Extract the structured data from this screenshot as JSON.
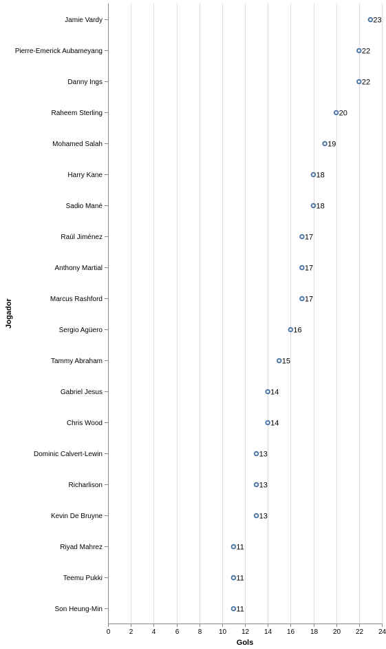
{
  "chart_data": {
    "type": "scatter",
    "title": "",
    "xlabel": "Gols",
    "ylabel": "Jogador",
    "xlim": [
      0,
      24
    ],
    "x_ticks": [
      0,
      2,
      4,
      6,
      8,
      10,
      12,
      14,
      16,
      18,
      20,
      22,
      24
    ],
    "grid": true,
    "point_color": "#4c78a8",
    "categories": [
      "Jamie Vardy",
      "Pierre-Emerick Aubameyang",
      "Danny Ings",
      "Raheem Sterling",
      "Mohamed Salah",
      "Harry Kane",
      "Sadio Mané",
      "Raúl Jiménez",
      "Anthony Martial",
      "Marcus Rashford",
      "Sergio Agüero",
      "Tammy Abraham",
      "Gabriel Jesus",
      "Chris Wood",
      "Dominic Calvert-Lewin",
      "Richarlison",
      "Kevin De Bruyne",
      "Riyad Mahrez",
      "Teemu Pukki",
      "Son Heung-Min"
    ],
    "values": [
      23,
      22,
      22,
      20,
      19,
      18,
      18,
      17,
      17,
      17,
      16,
      15,
      14,
      14,
      13,
      13,
      13,
      11,
      11,
      11
    ]
  }
}
